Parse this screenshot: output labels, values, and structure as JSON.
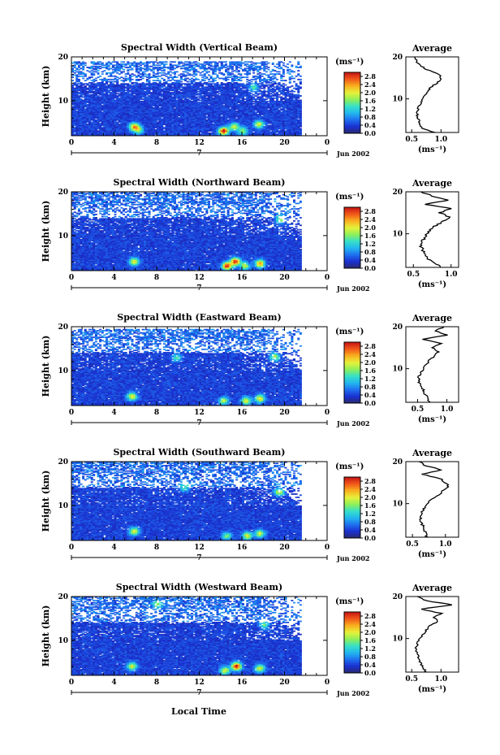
{
  "colorbar": {
    "unit_label": "(ms⁻¹)",
    "tick_labels": [
      "2.8",
      "2.4",
      "2.0",
      "1.6",
      "1.2",
      "0.8",
      "0.4",
      "0.0"
    ],
    "stops": [
      "#2a2a6a",
      "#1a2fd0",
      "#1f6ff0",
      "#22b7f0",
      "#37e0c8",
      "#8ef05a",
      "#e6f23a",
      "#f9b11f",
      "#f25a1a",
      "#c81414"
    ],
    "range": [
      0.0,
      3.0
    ]
  },
  "shared": {
    "x_ticks": [
      "0",
      "4",
      "8",
      "12",
      "16",
      "20",
      "0"
    ],
    "y_ticks": [
      "20",
      "10"
    ],
    "ylabel": "Height (km)",
    "xlabel": "Local Time",
    "date_label": "Jun 2002",
    "day_marker": "7",
    "avg_title": "Average",
    "avg_unit": "(ms⁻¹)"
  },
  "chart_data": [
    {
      "type": "heatmap",
      "title": "Spectral Width (Vertical Beam)",
      "xlabel": "",
      "ylabel": "Height (km)",
      "xlim": [
        0,
        24
      ],
      "ylim": [
        2,
        20
      ],
      "data_end_hour": 21.5,
      "top_gate": 18.8,
      "hotspots": [
        [
          5.8,
          4.0,
          1.9
        ],
        [
          6.2,
          3.2,
          1.2
        ],
        [
          14.2,
          3.0,
          2.6
        ],
        [
          15.2,
          4.0,
          1.5
        ],
        [
          16.0,
          3.0,
          1.3
        ],
        [
          17.5,
          4.5,
          1.6
        ],
        [
          17.0,
          13.0,
          1.0
        ]
      ],
      "avg_profile": {
        "x_ticks": [
          "0.5",
          "1.0"
        ],
        "xlim": [
          0.4,
          1.3
        ],
        "height": [
          2,
          3,
          4,
          5,
          6,
          7,
          8,
          9,
          10,
          11,
          12,
          13,
          14,
          15,
          16,
          17,
          18,
          19,
          20
        ],
        "width": [
          0.9,
          0.68,
          0.63,
          0.62,
          0.6,
          0.6,
          0.62,
          0.65,
          0.7,
          0.73,
          0.78,
          0.85,
          0.95,
          1.0,
          0.95,
          0.75,
          0.65,
          0.58,
          0.55
        ]
      }
    },
    {
      "type": "heatmap",
      "title": "Spectral Width (Northward Beam)",
      "xlabel": "",
      "ylabel": "Height (km)",
      "xlim": [
        0,
        24
      ],
      "ylim": [
        2,
        20
      ],
      "data_end_hour": 21.5,
      "top_gate": 20.0,
      "hotspots": [
        [
          5.8,
          4.0,
          1.6
        ],
        [
          14.5,
          3.0,
          2.5
        ],
        [
          15.3,
          4.0,
          2.4
        ],
        [
          16.2,
          3.0,
          1.4
        ],
        [
          17.6,
          3.5,
          2.0
        ],
        [
          19.5,
          13.5,
          1.2
        ]
      ],
      "avg_profile": {
        "x_ticks": [
          "0.5",
          "1.0"
        ],
        "xlim": [
          0.4,
          1.1
        ],
        "height": [
          2,
          3,
          4,
          5,
          6,
          7,
          8,
          9,
          10,
          11,
          12,
          13,
          14,
          15,
          16,
          17,
          18,
          19,
          20
        ],
        "width": [
          0.85,
          0.8,
          0.7,
          0.66,
          0.63,
          0.6,
          0.6,
          0.65,
          0.68,
          0.72,
          0.8,
          0.9,
          0.98,
          0.85,
          1.0,
          0.65,
          0.98,
          0.75,
          0.6
        ]
      }
    },
    {
      "type": "heatmap",
      "title": "Spectral Width (Eastward Beam)",
      "xlabel": "",
      "ylabel": "Height (km)",
      "xlim": [
        0,
        24
      ],
      "ylim": [
        2,
        20
      ],
      "data_end_hour": 21.5,
      "top_gate": 19.5,
      "hotspots": [
        [
          5.6,
          4.0,
          1.7
        ],
        [
          14.2,
          3.0,
          1.4
        ],
        [
          16.3,
          3.0,
          1.6
        ],
        [
          17.6,
          3.5,
          1.7
        ],
        [
          19.0,
          13.0,
          1.4
        ],
        [
          9.8,
          12.8,
          1.0
        ]
      ],
      "avg_profile": {
        "x_ticks": [
          "0.5",
          "1.0"
        ],
        "xlim": [
          0.3,
          1.2
        ],
        "height": [
          2,
          3,
          4,
          5,
          6,
          7,
          8,
          9,
          10,
          11,
          12,
          13,
          14,
          15,
          16,
          17,
          18,
          19,
          20
        ],
        "width": [
          0.7,
          0.68,
          0.62,
          0.6,
          0.55,
          0.52,
          0.52,
          0.55,
          0.6,
          0.65,
          0.7,
          0.78,
          0.85,
          0.75,
          0.9,
          0.6,
          1.0,
          0.8,
          0.95
        ]
      }
    },
    {
      "type": "heatmap",
      "title": "Spectral Width (Southward Beam)",
      "xlabel": "",
      "ylabel": "Height (km)",
      "xlim": [
        0,
        24
      ],
      "ylim": [
        2,
        20
      ],
      "data_end_hour": 21.5,
      "top_gate": 20.0,
      "hotspots": [
        [
          5.8,
          4.0,
          1.6
        ],
        [
          14.5,
          3.0,
          1.2
        ],
        [
          16.4,
          3.0,
          1.6
        ],
        [
          17.6,
          3.5,
          1.5
        ],
        [
          19.4,
          13.0,
          1.5
        ],
        [
          10.5,
          14.0,
          1.0
        ]
      ],
      "avg_profile": {
        "x_ticks": [
          "0.5",
          "1.0"
        ],
        "xlim": [
          0.4,
          1.2
        ],
        "height": [
          2,
          3,
          4,
          5,
          6,
          7,
          8,
          9,
          10,
          11,
          12,
          13,
          14,
          15,
          16,
          17,
          18,
          19,
          20
        ],
        "width": [
          0.72,
          0.7,
          0.68,
          0.65,
          0.63,
          0.63,
          0.65,
          0.68,
          0.72,
          0.8,
          0.9,
          0.95,
          1.05,
          1.0,
          0.92,
          0.65,
          0.95,
          0.7,
          0.6
        ]
      }
    },
    {
      "type": "heatmap",
      "title": "Spectral Width (Westward Beam)",
      "xlabel": "Local Time",
      "ylabel": "Height (km)",
      "xlim": [
        0,
        24
      ],
      "ylim": [
        2,
        20
      ],
      "data_end_hour": 21.5,
      "top_gate": 20.0,
      "hotspots": [
        [
          5.6,
          4.0,
          1.6
        ],
        [
          14.3,
          3.0,
          1.6
        ],
        [
          15.4,
          4.0,
          2.6
        ],
        [
          17.6,
          3.5,
          1.6
        ],
        [
          8.0,
          18.2,
          1.0
        ],
        [
          18.0,
          13.5,
          1.1
        ]
      ],
      "avg_profile": {
        "x_ticks": [
          "0.5",
          "1.0"
        ],
        "xlim": [
          0.4,
          1.3
        ],
        "height": [
          2,
          3,
          4,
          5,
          6,
          7,
          8,
          9,
          10,
          11,
          12,
          13,
          14,
          15,
          16,
          17,
          18,
          19,
          20
        ],
        "width": [
          0.75,
          0.7,
          0.66,
          0.62,
          0.6,
          0.58,
          0.58,
          0.6,
          0.62,
          0.7,
          0.75,
          0.8,
          0.95,
          0.88,
          1.0,
          0.65,
          1.2,
          0.75,
          0.6
        ]
      }
    }
  ]
}
